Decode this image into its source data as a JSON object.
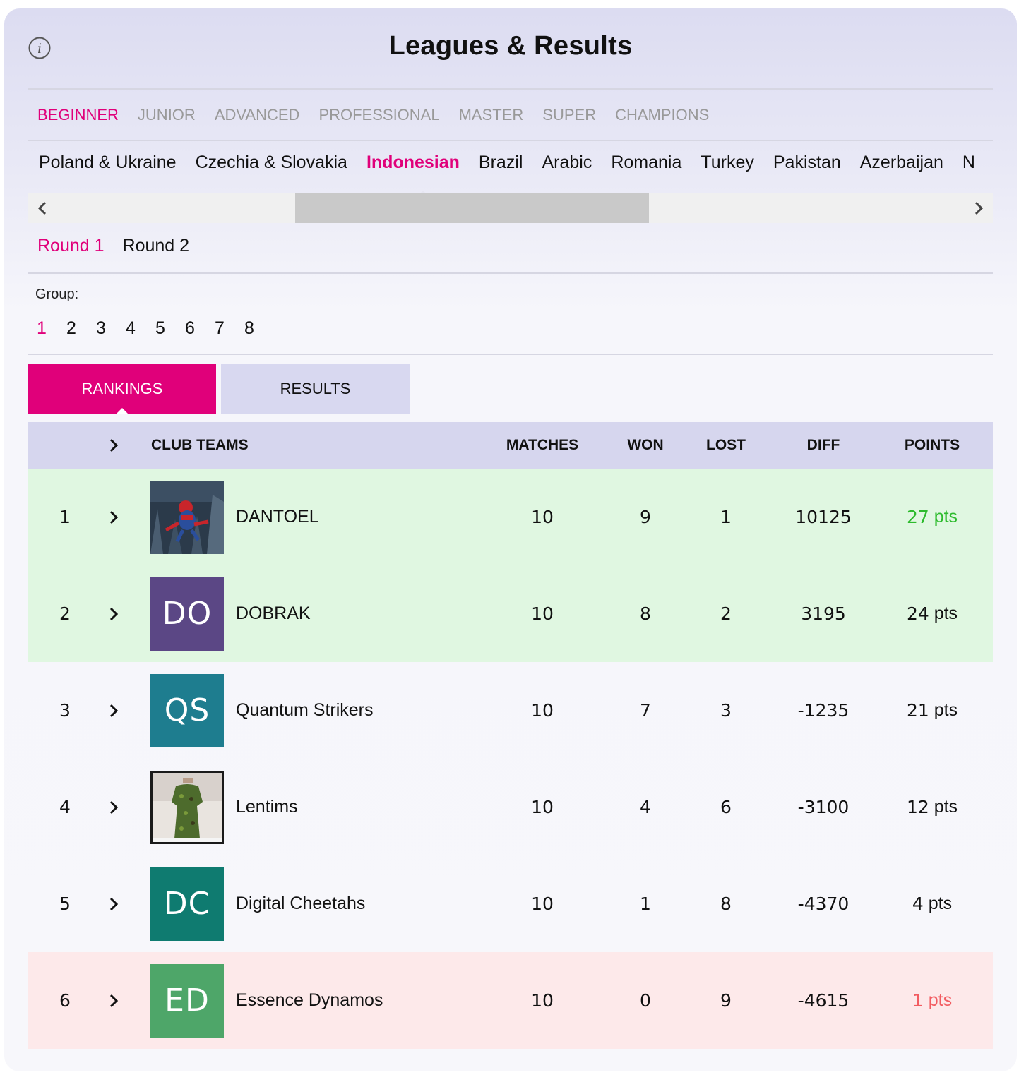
{
  "header": {
    "title": "Leagues & Results",
    "info_icon": "info-icon"
  },
  "levels": [
    {
      "label": "BEGINNER",
      "active": true
    },
    {
      "label": "JUNIOR",
      "active": false
    },
    {
      "label": "ADVANCED",
      "active": false
    },
    {
      "label": "PROFESSIONAL",
      "active": false
    },
    {
      "label": "MASTER",
      "active": false
    },
    {
      "label": "SUPER",
      "active": false
    },
    {
      "label": "CHAMPIONS",
      "active": false
    }
  ],
  "leagues": [
    {
      "label": "Poland & Ukraine",
      "active": false
    },
    {
      "label": "Czechia & Slovakia",
      "active": false
    },
    {
      "label": "Indonesian",
      "active": true
    },
    {
      "label": "Brazil",
      "active": false
    },
    {
      "label": "Arabic",
      "active": false
    },
    {
      "label": "Romania",
      "active": false
    },
    {
      "label": "Turkey",
      "active": false
    },
    {
      "label": "Pakistan",
      "active": false
    },
    {
      "label": "Azerbaijan",
      "active": false
    },
    {
      "label": "N",
      "active": false
    }
  ],
  "rounds": [
    {
      "label": "Round 1",
      "active": true
    },
    {
      "label": "Round 2",
      "active": false
    }
  ],
  "group": {
    "label": "Group:",
    "items": [
      "1",
      "2",
      "3",
      "4",
      "5",
      "6",
      "7",
      "8"
    ],
    "active": "1"
  },
  "tabs": {
    "rankings": "RANKINGS",
    "results": "RESULTS",
    "active": "rankings"
  },
  "table": {
    "columns": {
      "club_teams": "CLUB TEAMS",
      "matches": "MATCHES",
      "won": "WON",
      "lost": "LOST",
      "diff": "DIFF",
      "points": "POINTS"
    },
    "rows": [
      {
        "rank": "1",
        "name": "DANTOEL",
        "logo_type": "photo-spiderman",
        "matches": "10",
        "won": "9",
        "lost": "1",
        "diff": "10125",
        "points_value": "27",
        "points_unit": "pts",
        "zone": "promotion"
      },
      {
        "rank": "2",
        "name": "DOBRAK",
        "logo_type": "initials",
        "initials": "DO",
        "logo_color": "#5b4785",
        "matches": "10",
        "won": "8",
        "lost": "2",
        "diff": "3195",
        "points_value": "24",
        "points_unit": "pts",
        "zone": "promotion"
      },
      {
        "rank": "3",
        "name": "Quantum Strikers",
        "logo_type": "initials",
        "initials": "QS",
        "logo_color": "#1e7d8f",
        "matches": "10",
        "won": "7",
        "lost": "3",
        "diff": "-1235",
        "points_value": "21",
        "points_unit": "pts",
        "zone": "none"
      },
      {
        "rank": "4",
        "name": "Lentims",
        "logo_type": "photo-dress",
        "matches": "10",
        "won": "4",
        "lost": "6",
        "diff": "-3100",
        "points_value": "12",
        "points_unit": "pts",
        "zone": "none"
      },
      {
        "rank": "5",
        "name": "Digital Cheetahs",
        "logo_type": "initials",
        "initials": "DC",
        "logo_color": "#0f7b70",
        "matches": "10",
        "won": "1",
        "lost": "8",
        "diff": "-4370",
        "points_value": "4",
        "points_unit": "pts",
        "zone": "none"
      },
      {
        "rank": "6",
        "name": "Essence Dynamos",
        "logo_type": "initials",
        "initials": "ED",
        "logo_color": "#4ea669",
        "matches": "10",
        "won": "0",
        "lost": "9",
        "diff": "-4615",
        "points_value": "1",
        "points_unit": "pts",
        "zone": "relegation"
      }
    ]
  },
  "colors": {
    "accent": "#e0007a",
    "promotion_bg": "#e0f7e1",
    "relegation_bg": "#fde9ea",
    "points_green": "#2dbb2d",
    "points_red": "#f25c61",
    "header_bg": "#d6d6ee"
  }
}
